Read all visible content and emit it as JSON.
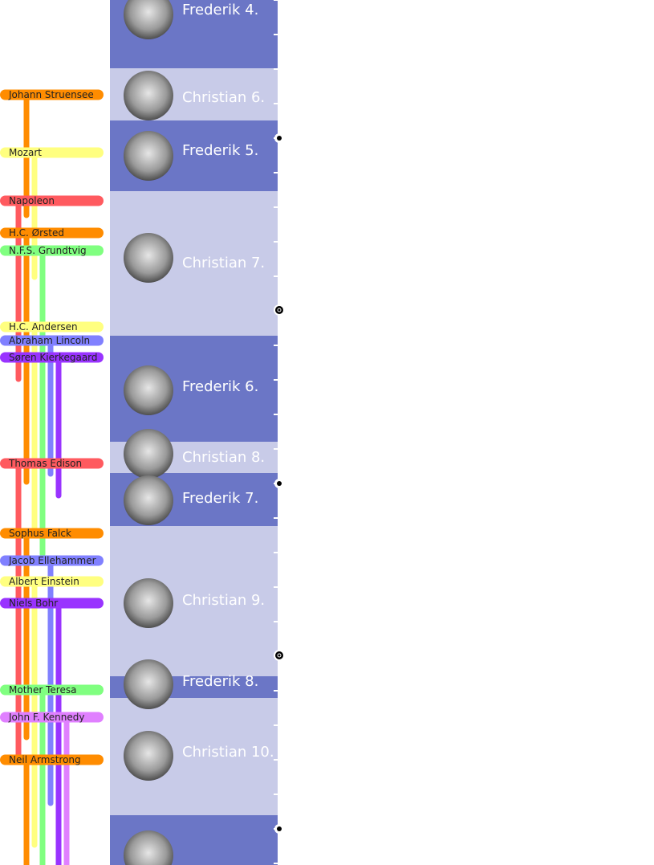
{
  "people": [
    {
      "name": "Johann Struensee"
    },
    {
      "name": "Mozart"
    },
    {
      "name": "Napoleon"
    },
    {
      "name": "H.C. Ørsted"
    },
    {
      "name": "N.F.S. Grundtvig"
    },
    {
      "name": "H.C. Andersen"
    },
    {
      "name": "Abraham Lincoln"
    },
    {
      "name": "Søren Kierkegaard"
    },
    {
      "name": "Thomas Edison"
    },
    {
      "name": "Sophus Falck"
    },
    {
      "name": "Jacob Ellehammer"
    },
    {
      "name": "Albert Einstein"
    },
    {
      "name": "Niels Bohr"
    },
    {
      "name": "Mother Teresa"
    },
    {
      "name": "John F. Kennedy"
    },
    {
      "name": "Neil Armstrong"
    }
  ],
  "monarchs": [
    {
      "name": "Frederik 4."
    },
    {
      "name": "Christian 6."
    },
    {
      "name": "Frederik 5."
    },
    {
      "name": "Christian 7."
    },
    {
      "name": "Frederik 6."
    },
    {
      "name": "Christian 8."
    },
    {
      "name": "Frederik 7."
    },
    {
      "name": "Christian 9."
    },
    {
      "name": "Frederik 8."
    },
    {
      "name": "Christian 10."
    }
  ]
}
